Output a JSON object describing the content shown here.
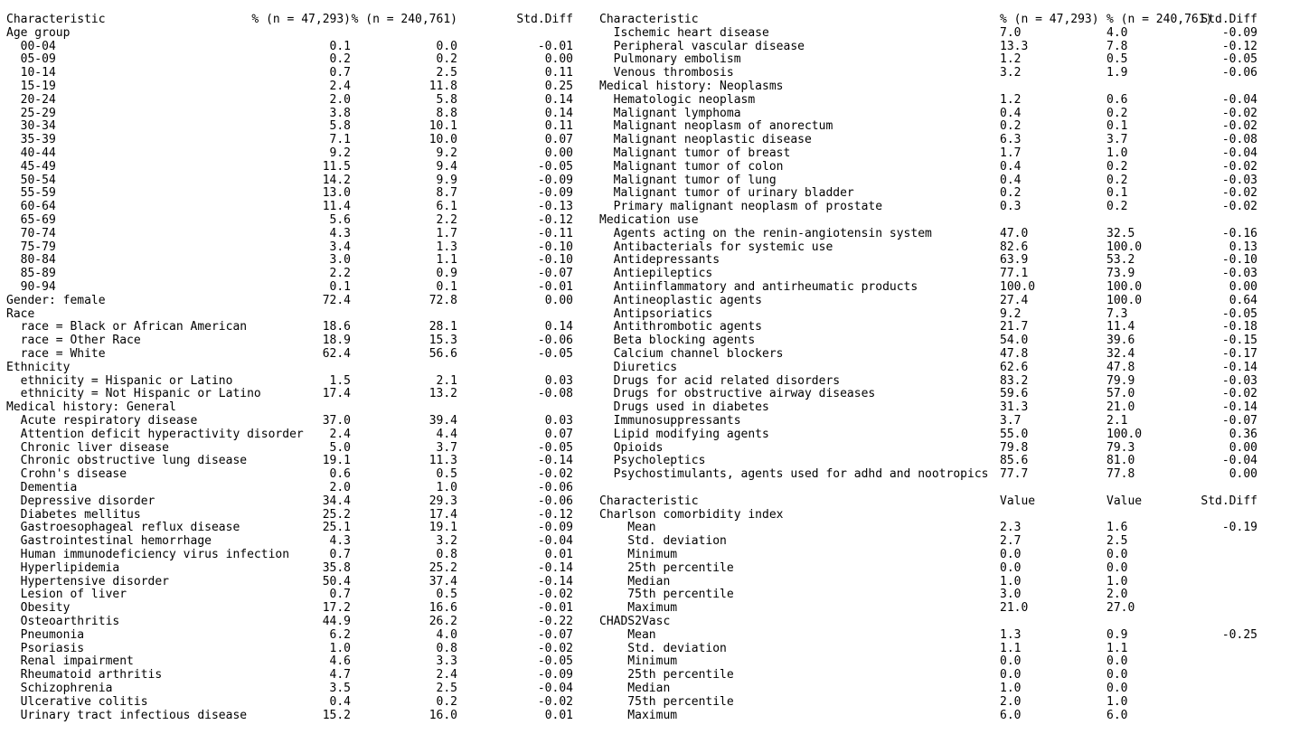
{
  "left": {
    "header": [
      "Characteristic",
      "% (n = 47,293)",
      "% (n = 240,761)",
      "Std.Diff"
    ],
    "rows": [
      [
        "Age group",
        "",
        "",
        ""
      ],
      [
        "  00-04",
        "0.1",
        "0.0",
        "-0.01"
      ],
      [
        "  05-09",
        "0.2",
        "0.2",
        "0.00"
      ],
      [
        "  10-14",
        "0.7",
        "2.5",
        "0.11"
      ],
      [
        "  15-19",
        "2.4",
        "11.8",
        "0.25"
      ],
      [
        "  20-24",
        "2.0",
        "5.8",
        "0.14"
      ],
      [
        "  25-29",
        "3.8",
        "8.8",
        "0.14"
      ],
      [
        "  30-34",
        "5.8",
        "10.1",
        "0.11"
      ],
      [
        "  35-39",
        "7.1",
        "10.0",
        "0.07"
      ],
      [
        "  40-44",
        "9.2",
        "9.2",
        "0.00"
      ],
      [
        "  45-49",
        "11.5",
        "9.4",
        "-0.05"
      ],
      [
        "  50-54",
        "14.2",
        "9.9",
        "-0.09"
      ],
      [
        "  55-59",
        "13.0",
        "8.7",
        "-0.09"
      ],
      [
        "  60-64",
        "11.4",
        "6.1",
        "-0.13"
      ],
      [
        "  65-69",
        "5.6",
        "2.2",
        "-0.12"
      ],
      [
        "  70-74",
        "4.3",
        "1.7",
        "-0.11"
      ],
      [
        "  75-79",
        "3.4",
        "1.3",
        "-0.10"
      ],
      [
        "  80-84",
        "3.0",
        "1.1",
        "-0.10"
      ],
      [
        "  85-89",
        "2.2",
        "0.9",
        "-0.07"
      ],
      [
        "  90-94",
        "0.1",
        "0.1",
        "-0.01"
      ],
      [
        "Gender: female",
        "72.4",
        "72.8",
        "0.00"
      ],
      [
        "Race",
        "",
        "",
        ""
      ],
      [
        "  race = Black or African American",
        "18.6",
        "28.1",
        "0.14"
      ],
      [
        "  race = Other Race",
        "18.9",
        "15.3",
        "-0.06"
      ],
      [
        "  race = White",
        "62.4",
        "56.6",
        "-0.05"
      ],
      [
        "Ethnicity",
        "",
        "",
        ""
      ],
      [
        "  ethnicity = Hispanic or Latino",
        "1.5",
        "2.1",
        "0.03"
      ],
      [
        "  ethnicity = Not Hispanic or Latino",
        "17.4",
        "13.2",
        "-0.08"
      ],
      [
        "Medical history: General",
        "",
        "",
        ""
      ],
      [
        "  Acute respiratory disease",
        "37.0",
        "39.4",
        "0.03"
      ],
      [
        "  Attention deficit hyperactivity disorder",
        "2.4",
        "4.4",
        "0.07"
      ],
      [
        "  Chronic liver disease",
        "5.0",
        "3.7",
        "-0.05"
      ],
      [
        "  Chronic obstructive lung disease",
        "19.1",
        "11.3",
        "-0.14"
      ],
      [
        "  Crohn's disease",
        "0.6",
        "0.5",
        "-0.02"
      ],
      [
        "  Dementia",
        "2.0",
        "1.0",
        "-0.06"
      ],
      [
        "  Depressive disorder",
        "34.4",
        "29.3",
        "-0.06"
      ],
      [
        "  Diabetes mellitus",
        "25.2",
        "17.4",
        "-0.12"
      ],
      [
        "  Gastroesophageal reflux disease",
        "25.1",
        "19.1",
        "-0.09"
      ],
      [
        "  Gastrointestinal hemorrhage",
        "4.3",
        "3.2",
        "-0.04"
      ],
      [
        "  Human immunodeficiency virus infection",
        "0.7",
        "0.8",
        "0.01"
      ],
      [
        "  Hyperlipidemia",
        "35.8",
        "25.2",
        "-0.14"
      ],
      [
        "  Hypertensive disorder",
        "50.4",
        "37.4",
        "-0.14"
      ],
      [
        "  Lesion of liver",
        "0.7",
        "0.5",
        "-0.02"
      ],
      [
        "  Obesity",
        "17.2",
        "16.6",
        "-0.01"
      ],
      [
        "  Osteoarthritis",
        "44.9",
        "26.2",
        "-0.22"
      ],
      [
        "  Pneumonia",
        "6.2",
        "4.0",
        "-0.07"
      ],
      [
        "  Psoriasis",
        "1.0",
        "0.8",
        "-0.02"
      ],
      [
        "  Renal impairment",
        "4.6",
        "3.3",
        "-0.05"
      ],
      [
        "  Rheumatoid arthritis",
        "4.7",
        "2.4",
        "-0.09"
      ],
      [
        "  Schizophrenia",
        "3.5",
        "2.5",
        "-0.04"
      ],
      [
        "  Ulcerative colitis",
        "0.4",
        "0.2",
        "-0.02"
      ],
      [
        "  Urinary tract infectious disease",
        "15.2",
        "16.0",
        "0.01"
      ]
    ]
  },
  "right": {
    "header": [
      "Characteristic",
      "% (n = 47,293)",
      "% (n = 240,761)",
      "Std.Diff"
    ],
    "rows": [
      [
        "  Ischemic heart disease",
        "7.0",
        "4.0",
        "-0.09"
      ],
      [
        "  Peripheral vascular disease",
        "13.3",
        "7.8",
        "-0.12"
      ],
      [
        "  Pulmonary embolism",
        "1.2",
        "0.5",
        "-0.05"
      ],
      [
        "  Venous thrombosis",
        "3.2",
        "1.9",
        "-0.06"
      ],
      [
        "Medical history: Neoplasms",
        "",
        "",
        ""
      ],
      [
        "  Hematologic neoplasm",
        "1.2",
        "0.6",
        "-0.04"
      ],
      [
        "  Malignant lymphoma",
        "0.4",
        "0.2",
        "-0.02"
      ],
      [
        "  Malignant neoplasm of anorectum",
        "0.2",
        "0.1",
        "-0.02"
      ],
      [
        "  Malignant neoplastic disease",
        "6.3",
        "3.7",
        "-0.08"
      ],
      [
        "  Malignant tumor of breast",
        "1.7",
        "1.0",
        "-0.04"
      ],
      [
        "  Malignant tumor of colon",
        "0.4",
        "0.2",
        "-0.02"
      ],
      [
        "  Malignant tumor of lung",
        "0.4",
        "0.2",
        "-0.03"
      ],
      [
        "  Malignant tumor of urinary bladder",
        "0.2",
        "0.1",
        "-0.02"
      ],
      [
        "  Primary malignant neoplasm of prostate",
        "0.3",
        "0.2",
        "-0.02"
      ],
      [
        "Medication use",
        "",
        "",
        ""
      ],
      [
        "  Agents acting on the renin-angiotensin system",
        "47.0",
        "32.5",
        "-0.16"
      ],
      [
        "  Antibacterials for systemic use",
        "82.6",
        "100.0",
        "0.13"
      ],
      [
        "  Antidepressants",
        "63.9",
        "53.2",
        "-0.10"
      ],
      [
        "  Antiepileptics",
        "77.1",
        "73.9",
        "-0.03"
      ],
      [
        "  Antiinflammatory and antirheumatic products",
        "100.0",
        "100.0",
        "0.00"
      ],
      [
        "  Antineoplastic agents",
        "27.4",
        "100.0",
        "0.64"
      ],
      [
        "  Antipsoriatics",
        "9.2",
        "7.3",
        "-0.05"
      ],
      [
        "  Antithrombotic agents",
        "21.7",
        "11.4",
        "-0.18"
      ],
      [
        "  Beta blocking agents",
        "54.0",
        "39.6",
        "-0.15"
      ],
      [
        "  Calcium channel blockers",
        "47.8",
        "32.4",
        "-0.17"
      ],
      [
        "  Diuretics",
        "62.6",
        "47.8",
        "-0.14"
      ],
      [
        "  Drugs for acid related disorders",
        "83.2",
        "79.9",
        "-0.03"
      ],
      [
        "  Drugs for obstructive airway diseases",
        "59.6",
        "57.0",
        "-0.02"
      ],
      [
        "  Drugs used in diabetes",
        "31.3",
        "21.0",
        "-0.14"
      ],
      [
        "  Immunosuppressants",
        "3.7",
        "2.1",
        "-0.07"
      ],
      [
        "  Lipid modifying agents",
        "55.0",
        "100.0",
        "0.36"
      ],
      [
        "  Opioids",
        "79.8",
        "79.3",
        "0.00"
      ],
      [
        "  Psycholeptics",
        "85.6",
        "81.0",
        "-0.04"
      ],
      [
        "  Psychostimulants, agents used for adhd and nootropics",
        "77.7",
        "77.8",
        "0.00"
      ],
      [
        "",
        "",
        "",
        ""
      ],
      [
        "Characteristic",
        "Value",
        "Value",
        "Std.Diff"
      ],
      [
        "Charlson comorbidity index",
        "",
        "",
        ""
      ],
      [
        "    Mean",
        "2.3",
        "1.6",
        "-0.19"
      ],
      [
        "    Std. deviation",
        "2.7",
        "2.5",
        ""
      ],
      [
        "    Minimum",
        "0.0",
        "0.0",
        ""
      ],
      [
        "    25th percentile",
        "0.0",
        "0.0",
        ""
      ],
      [
        "    Median",
        "1.0",
        "1.0",
        ""
      ],
      [
        "    75th percentile",
        "3.0",
        "2.0",
        ""
      ],
      [
        "    Maximum",
        "21.0",
        "27.0",
        ""
      ],
      [
        "CHADS2Vasc",
        "",
        "",
        ""
      ],
      [
        "    Mean",
        "1.3",
        "0.9",
        "-0.25"
      ],
      [
        "    Std. deviation",
        "1.1",
        "1.1",
        ""
      ],
      [
        "    Minimum",
        "0.0",
        "0.0",
        ""
      ],
      [
        "    25th percentile",
        "0.0",
        "0.0",
        ""
      ],
      [
        "    Median",
        "1.0",
        "0.0",
        ""
      ],
      [
        "    75th percentile",
        "2.0",
        "1.0",
        ""
      ],
      [
        "    Maximum",
        "6.0",
        "6.0",
        ""
      ]
    ]
  }
}
